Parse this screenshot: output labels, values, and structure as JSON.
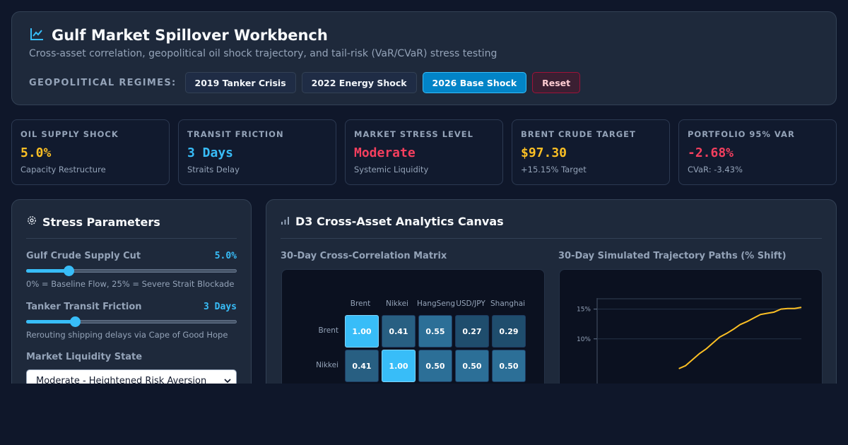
{
  "header": {
    "title": "Gulf Market Spillover Workbench",
    "subtitle": "Cross-asset correlation, geopolitical oil shock trajectory, and tail-risk (VaR/CVaR) stress testing",
    "regimes_label": "GEOPOLITICAL REGIMES:",
    "regimes": [
      "2019 Tanker Crisis",
      "2022 Energy Shock",
      "2026 Base Shock"
    ],
    "active_regime": "2026 Base Shock",
    "reset_label": "Reset"
  },
  "kpis": [
    {
      "label": "OIL SUPPLY SHOCK",
      "value": "5.0%",
      "sub": "Capacity Restructure",
      "color": "#fbbf24"
    },
    {
      "label": "TRANSIT FRICTION",
      "value": "3 Days",
      "sub": "Straits Delay",
      "color": "#38bdf8"
    },
    {
      "label": "MARKET STRESS LEVEL",
      "value": "Moderate",
      "sub": "Systemic Liquidity",
      "color": "#f43f5e"
    },
    {
      "label": "BRENT CRUDE TARGET",
      "value": "$97.30",
      "sub": "+15.15% Target",
      "color": "#fbbf24"
    },
    {
      "label": "PORTFOLIO 95% VAR",
      "value": "-2.68%",
      "sub": "CVaR: -3.43%",
      "color": "#f43f5e"
    }
  ],
  "params": {
    "title": "Stress Parameters",
    "supply_cut": {
      "label": "Gulf Crude Supply Cut",
      "value": "5.0%",
      "hint": "0% = Baseline Flow, 25% = Severe Strait Blockade",
      "level": 0.2
    },
    "transit": {
      "label": "Tanker Transit Friction",
      "value": "3 Days",
      "hint": "Rerouting shipping delays via Cape of Good Hope",
      "level": 0.23
    },
    "liquidity": {
      "label": "Market Liquidity State",
      "selected": "Moderate - Heightened Risk Aversion"
    }
  },
  "analytics": {
    "title": "D3 Cross-Asset Analytics Canvas",
    "matrix_title": "30-Day Cross-Correlation Matrix",
    "trajectory_title": "30-Day Simulated Trajectory Paths (% Shift)"
  },
  "chart_data": [
    {
      "type": "heatmap",
      "title": "30-Day Cross-Correlation Matrix",
      "columns": [
        "Brent",
        "Nikkei",
        "HangSeng",
        "USD/JPY",
        "Shanghai"
      ],
      "rows": [
        "Brent",
        "Nikkei"
      ],
      "values": [
        [
          "1.00",
          "0.41",
          "0.55",
          "0.27",
          "0.29"
        ],
        [
          "0.41",
          "1.00",
          "0.50",
          "0.50",
          "0.50"
        ]
      ]
    },
    {
      "type": "line",
      "title": "30-Day Simulated Trajectory Paths (% Shift)",
      "yticks": [
        "15%",
        "10%"
      ],
      "ylim": [
        0,
        16.5
      ],
      "series": [
        {
          "color": "#fbbf24",
          "x": [
            12,
            13,
            14,
            15,
            16,
            17,
            18,
            19,
            20,
            21,
            22,
            23,
            24,
            25,
            26,
            27,
            28,
            29,
            30
          ],
          "values": [
            5.0,
            5.5,
            6.5,
            7.5,
            8.3,
            9.3,
            10.3,
            10.9,
            11.6,
            12.4,
            12.9,
            13.5,
            14.1,
            14.3,
            14.5,
            15.0,
            15.1,
            15.1,
            15.3
          ]
        }
      ]
    }
  ]
}
